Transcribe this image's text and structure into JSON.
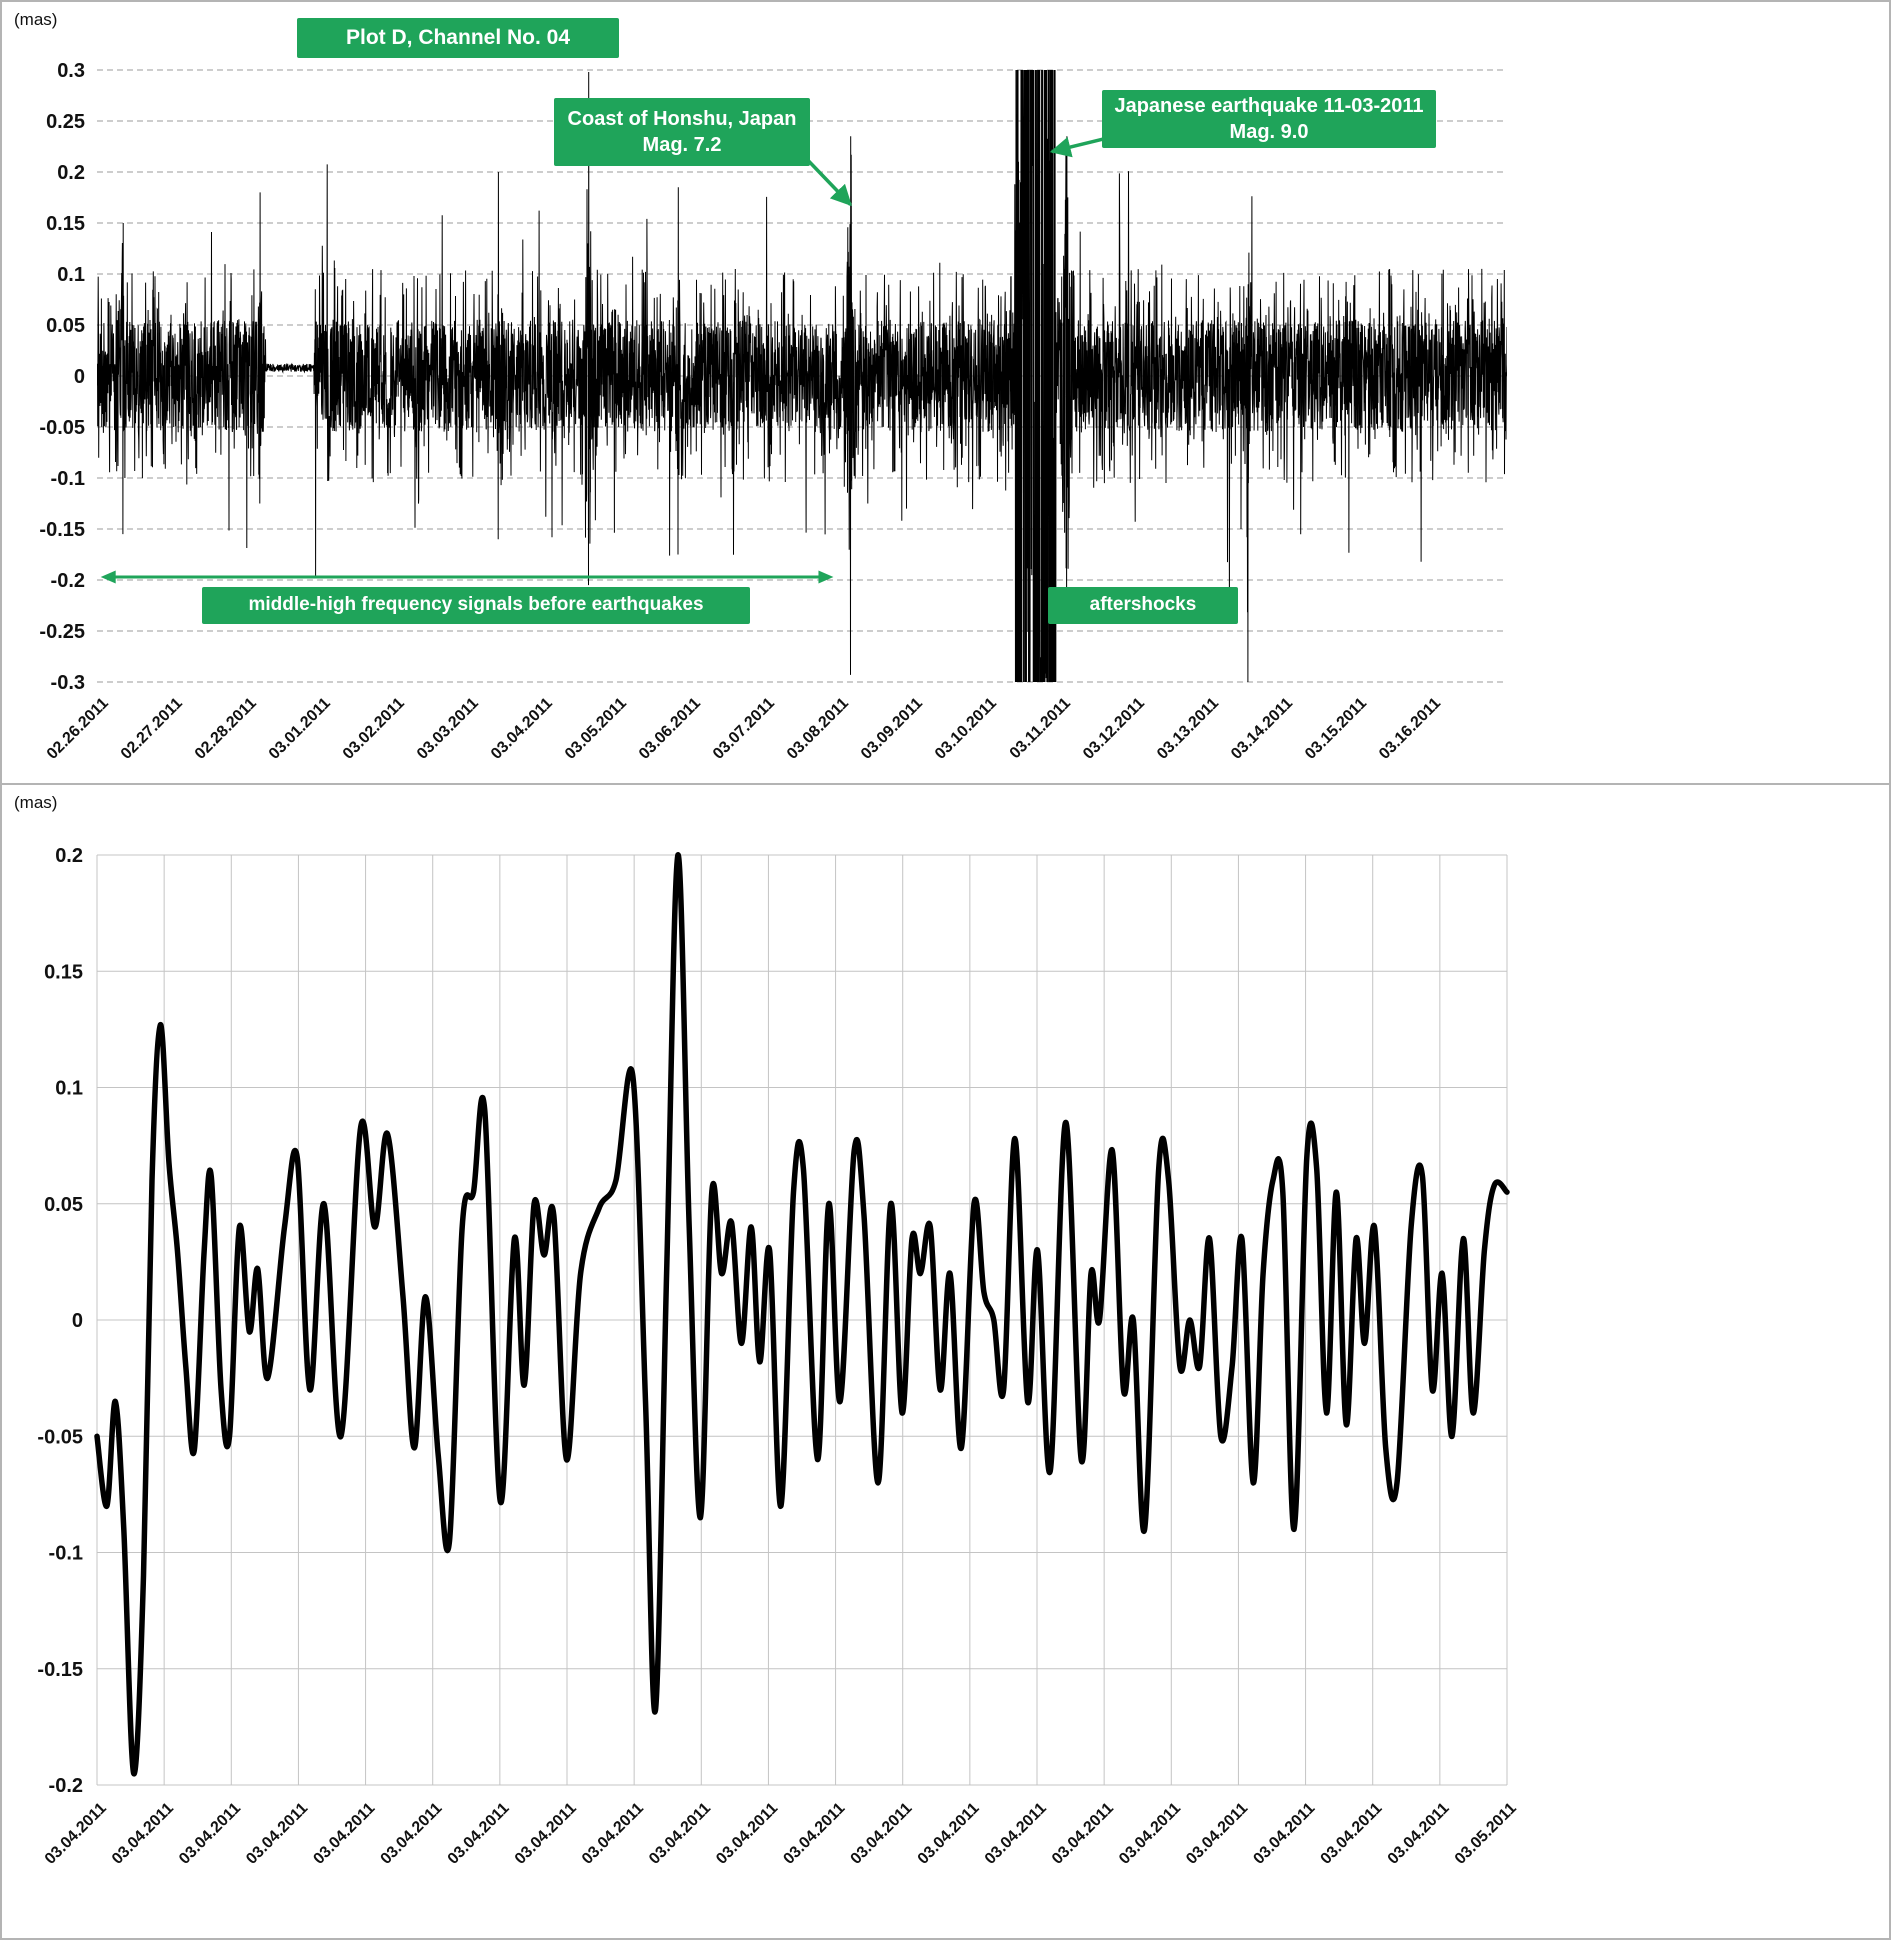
{
  "page": {
    "background": "#ffffff",
    "border_color": "#b4b4b4"
  },
  "colors": {
    "annotation_green": "#1FA45A",
    "signal_black": "#000000",
    "grid_dashed": "#9b9b9b",
    "grid_solid": "#c4c4c4",
    "tick_text": "#111111"
  },
  "chart_data": [
    {
      "id": "high-frequency-signal",
      "type": "line",
      "unit": "(mas)",
      "title": "Plot D, Channel No. 04",
      "ylim": [
        -0.3,
        0.3
      ],
      "ytick_step": 0.05,
      "ytick_labels": [
        "0.3",
        "0.25",
        "0.2",
        "0.15",
        "0.1",
        "0.05",
        "0",
        "-0.05",
        "-0.1",
        "-0.15",
        "-0.2",
        "-0.25",
        "-0.3"
      ],
      "xtick_labels": [
        "02.26.2011",
        "02.27.2011",
        "02.28.2011",
        "03.01.2011",
        "03.02.2011",
        "03.03.2011",
        "03.04.2011",
        "03.05.2011",
        "03.06.2011",
        "03.07.2011",
        "03.08.2011",
        "03.09.2011",
        "03.10.2011",
        "03.11.2011",
        "03.12.2011",
        "03.13.2011",
        "03.14.2011",
        "03.15.2011",
        "03.16.2011"
      ],
      "x_total_days": 19.05,
      "grid": "dashed-horizontal",
      "annotations": {
        "honshu": {
          "line1": "Coast of Honshu, Japan",
          "line2": "Mag. 7.2",
          "arrow_tip_day": 10.18,
          "arrow_tip_value": 0.168
        },
        "mainshock": {
          "line1": "Japanese earthquake 11-03-2011",
          "line2": "Mag. 9.0",
          "arrow_tip_day": 12.9,
          "arrow_tip_value": 0.22
        },
        "pre_signal": {
          "text": "middle-high frequency signals before earthquakes",
          "span_from_day": 0.05,
          "span_to_day": 9.95,
          "span_value": -0.197
        },
        "aftershocks": {
          "text": "aftershocks"
        }
      },
      "signal": {
        "seed": 20110311,
        "samples_per_day": 300,
        "base_amplitude": 0.055,
        "mid_amplitude": 0.105,
        "mid_probability": 0.22,
        "spike_probability": 0.04,
        "spike_base": 0.06,
        "spike_extra_amplitude": 0.18,
        "quiet_interval": {
          "from_day": 2.28,
          "to_day": 2.93,
          "amplitude": 0.004,
          "offset": 0.008
        },
        "events": [
          {
            "name": "early-burst",
            "day": 0.35,
            "up": 0.15,
            "down": -0.155,
            "width": 0.12
          },
          {
            "name": "pre-gap-spike",
            "day": 2.2,
            "up": 0.18,
            "down": -0.125,
            "width": 0.1
          },
          {
            "name": "spike-03-02",
            "day": 5.42,
            "up": 0.2,
            "down": -0.16,
            "width": 0.1
          },
          {
            "name": "spike-03-04",
            "day": 6.64,
            "up": 0.298,
            "down": -0.205,
            "width": 0.12
          },
          {
            "name": "spike-03-05",
            "day": 7.85,
            "up": 0.185,
            "down": -0.175,
            "width": 0.1
          },
          {
            "name": "honshu-mag-7.2",
            "day": 10.18,
            "up": 0.235,
            "down": -0.293,
            "width": 0.16
          },
          {
            "name": "mainshock-mag-9.0",
            "day": 12.68,
            "up": 0.95,
            "down": -0.95,
            "width": 0.55,
            "burst": true
          },
          {
            "name": "post-mainshock-spikes",
            "day": 13.1,
            "up": 0.235,
            "down": -0.23,
            "width": 0.25
          },
          {
            "name": "aftershock-spike",
            "day": 15.55,
            "up": 0.09,
            "down": -0.3,
            "width": 0.07
          }
        ]
      }
    },
    {
      "id": "low-frequency-signal",
      "type": "line",
      "unit": "(mas)",
      "ylim": [
        -0.2,
        0.2
      ],
      "ytick_step": 0.05,
      "ytick_labels": [
        "0.2",
        "0.15",
        "0.1",
        "0.05",
        "0",
        "-0.05",
        "-0.1",
        "-0.15",
        "-0.2"
      ],
      "xtick_labels": [
        "03.04.2011",
        "03.04.2011",
        "03.04.2011",
        "03.04.2011",
        "03.04.2011",
        "03.04.2011",
        "03.04.2011",
        "03.04.2011",
        "03.04.2011",
        "03.04.2011",
        "03.04.2011",
        "03.04.2011",
        "03.04.2011",
        "03.04.2011",
        "03.04.2011",
        "03.04.2011",
        "03.04.2011",
        "03.04.2011",
        "03.04.2011",
        "03.04.2011",
        "03.04.2011",
        "03.05.2011"
      ],
      "grid": "solid-both",
      "line_width": 5.5,
      "points": [
        [
          0.0,
          -0.05
        ],
        [
          0.007,
          -0.08
        ],
        [
          0.013,
          -0.035
        ],
        [
          0.019,
          -0.09
        ],
        [
          0.026,
          -0.195
        ],
        [
          0.033,
          -0.11
        ],
        [
          0.039,
          0.06
        ],
        [
          0.045,
          0.127
        ],
        [
          0.051,
          0.068
        ],
        [
          0.057,
          0.03
        ],
        [
          0.063,
          -0.02
        ],
        [
          0.069,
          -0.056
        ],
        [
          0.076,
          0.03
        ],
        [
          0.081,
          0.062
        ],
        [
          0.088,
          -0.03
        ],
        [
          0.094,
          -0.05
        ],
        [
          0.101,
          0.04
        ],
        [
          0.108,
          -0.005
        ],
        [
          0.114,
          0.022
        ],
        [
          0.121,
          -0.025
        ],
        [
          0.133,
          0.04
        ],
        [
          0.142,
          0.07
        ],
        [
          0.151,
          -0.03
        ],
        [
          0.161,
          0.05
        ],
        [
          0.173,
          -0.05
        ],
        [
          0.187,
          0.083
        ],
        [
          0.197,
          0.04
        ],
        [
          0.206,
          0.08
        ],
        [
          0.217,
          0.01
        ],
        [
          0.225,
          -0.055
        ],
        [
          0.233,
          0.01
        ],
        [
          0.242,
          -0.058
        ],
        [
          0.25,
          -0.095
        ],
        [
          0.259,
          0.04
        ],
        [
          0.267,
          0.055
        ],
        [
          0.275,
          0.09
        ],
        [
          0.286,
          -0.078
        ],
        [
          0.296,
          0.035
        ],
        [
          0.303,
          -0.028
        ],
        [
          0.31,
          0.05
        ],
        [
          0.317,
          0.028
        ],
        [
          0.324,
          0.045
        ],
        [
          0.333,
          -0.06
        ],
        [
          0.343,
          0.02
        ],
        [
          0.356,
          0.048
        ],
        [
          0.368,
          0.06
        ],
        [
          0.38,
          0.105
        ],
        [
          0.389,
          -0.035
        ],
        [
          0.396,
          -0.168
        ],
        [
          0.404,
          0.02
        ],
        [
          0.412,
          0.2
        ],
        [
          0.42,
          0.04
        ],
        [
          0.428,
          -0.085
        ],
        [
          0.436,
          0.055
        ],
        [
          0.443,
          0.02
        ],
        [
          0.45,
          0.042
        ],
        [
          0.457,
          -0.01
        ],
        [
          0.464,
          0.04
        ],
        [
          0.47,
          -0.018
        ],
        [
          0.477,
          0.03
        ],
        [
          0.485,
          -0.08
        ],
        [
          0.494,
          0.055
        ],
        [
          0.501,
          0.065
        ],
        [
          0.511,
          -0.06
        ],
        [
          0.519,
          0.05
        ],
        [
          0.527,
          -0.035
        ],
        [
          0.537,
          0.073
        ],
        [
          0.544,
          0.045
        ],
        [
          0.554,
          -0.07
        ],
        [
          0.563,
          0.05
        ],
        [
          0.571,
          -0.04
        ],
        [
          0.578,
          0.035
        ],
        [
          0.584,
          0.02
        ],
        [
          0.591,
          0.04
        ],
        [
          0.598,
          -0.03
        ],
        [
          0.605,
          0.02
        ],
        [
          0.613,
          -0.055
        ],
        [
          0.622,
          0.05
        ],
        [
          0.629,
          0.012
        ],
        [
          0.636,
          0.0
        ],
        [
          0.643,
          -0.03
        ],
        [
          0.651,
          0.078
        ],
        [
          0.66,
          -0.035
        ],
        [
          0.667,
          0.03
        ],
        [
          0.676,
          -0.065
        ],
        [
          0.687,
          0.085
        ],
        [
          0.698,
          -0.06
        ],
        [
          0.705,
          0.02
        ],
        [
          0.711,
          0.0
        ],
        [
          0.72,
          0.073
        ],
        [
          0.728,
          -0.03
        ],
        [
          0.735,
          0.0
        ],
        [
          0.743,
          -0.09
        ],
        [
          0.753,
          0.065
        ],
        [
          0.76,
          0.06
        ],
        [
          0.768,
          -0.02
        ],
        [
          0.775,
          0.0
        ],
        [
          0.782,
          -0.02
        ],
        [
          0.789,
          0.035
        ],
        [
          0.797,
          -0.05
        ],
        [
          0.805,
          -0.02
        ],
        [
          0.812,
          0.035
        ],
        [
          0.82,
          -0.07
        ],
        [
          0.827,
          0.02
        ],
        [
          0.834,
          0.06
        ],
        [
          0.841,
          0.055
        ],
        [
          0.849,
          -0.09
        ],
        [
          0.858,
          0.07
        ],
        [
          0.865,
          0.065
        ],
        [
          0.872,
          -0.04
        ],
        [
          0.879,
          0.055
        ],
        [
          0.886,
          -0.045
        ],
        [
          0.893,
          0.035
        ],
        [
          0.899,
          -0.01
        ],
        [
          0.906,
          0.04
        ],
        [
          0.914,
          -0.055
        ],
        [
          0.922,
          -0.07
        ],
        [
          0.932,
          0.04
        ],
        [
          0.94,
          0.062
        ],
        [
          0.947,
          -0.03
        ],
        [
          0.954,
          0.02
        ],
        [
          0.961,
          -0.05
        ],
        [
          0.969,
          0.035
        ],
        [
          0.976,
          -0.04
        ],
        [
          0.984,
          0.03
        ],
        [
          0.991,
          0.058
        ],
        [
          1.0,
          0.055
        ]
      ]
    }
  ]
}
